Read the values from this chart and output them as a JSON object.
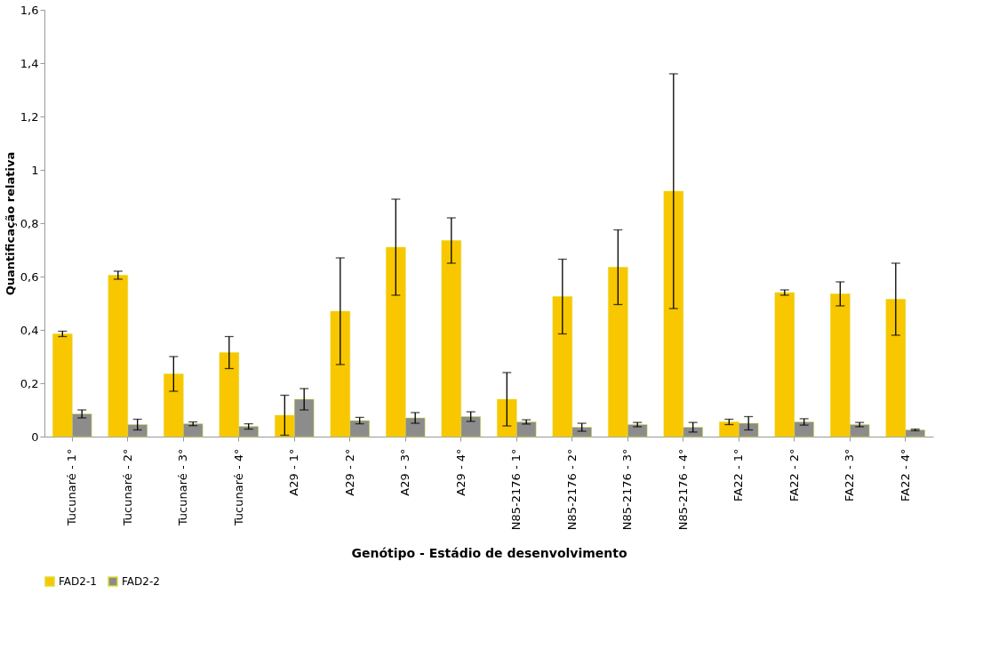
{
  "chart_data": {
    "type": "bar",
    "xlabel": "Genótipo - Estádio de desenvolvimento",
    "ylabel": "Quantificação relativa",
    "categories": [
      "Tucunaré - 1°",
      "Tucunaré - 2°",
      "Tucunaré - 3°",
      "Tucunaré - 4°",
      "A29 - 1°",
      "A29 - 2°",
      "A29 - 3°",
      "A29 - 4°",
      "N85-2176 - 1°",
      "N85-2176 - 2°",
      "N85-2176 - 3°",
      "N85-2176 - 4°",
      "FA22 - 1°",
      "FA22 - 2°",
      "FA22 - 3°",
      "FA22 - 4°"
    ],
    "series": [
      {
        "name": "FAD2-1",
        "color": "#f9c700",
        "values": [
          0.385,
          0.605,
          0.235,
          0.315,
          0.08,
          0.47,
          0.71,
          0.735,
          0.14,
          0.525,
          0.635,
          0.92,
          0.055,
          0.54,
          0.535,
          0.515
        ],
        "errors": [
          0.01,
          0.015,
          0.065,
          0.06,
          0.075,
          0.2,
          0.18,
          0.085,
          0.1,
          0.14,
          0.14,
          0.44,
          0.01,
          0.01,
          0.045,
          0.135
        ]
      },
      {
        "name": "FAD2-2",
        "color": "#8c8c8c",
        "values": [
          0.085,
          0.045,
          0.048,
          0.038,
          0.14,
          0.06,
          0.07,
          0.075,
          0.055,
          0.035,
          0.045,
          0.035,
          0.05,
          0.055,
          0.045,
          0.025
        ],
        "errors": [
          0.015,
          0.02,
          0.007,
          0.01,
          0.04,
          0.012,
          0.02,
          0.018,
          0.008,
          0.015,
          0.008,
          0.018,
          0.025,
          0.012,
          0.008,
          0.003
        ]
      }
    ],
    "ylim": [
      0,
      1.6
    ],
    "yticks": [
      0,
      {
        "value": 0.2,
        "label": "0,2"
      },
      {
        "value": 0.4,
        "label": "0,4"
      },
      {
        "value": 0.6,
        "label": "0,6"
      },
      {
        "value": 0.8,
        "label": "0,8"
      },
      1,
      {
        "value": 1.2,
        "label": "1,2"
      },
      {
        "value": 1.4,
        "label": "1,4"
      },
      {
        "value": 1.6,
        "label": "1,6"
      }
    ],
    "grid": false,
    "legend": "bottom"
  }
}
